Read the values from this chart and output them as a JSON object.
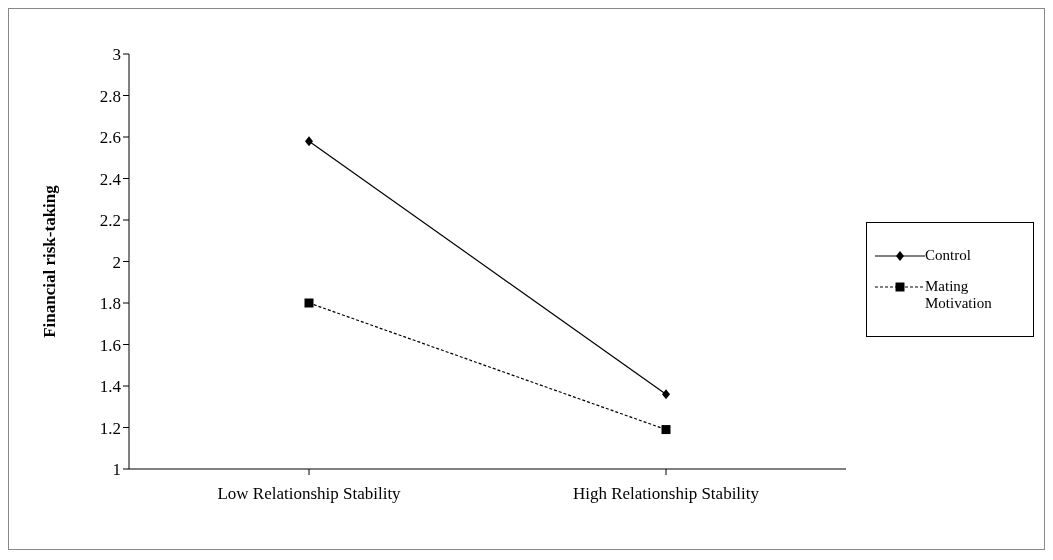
{
  "chart_data": {
    "type": "line",
    "ylabel": "Financial risk-taking",
    "categories": [
      "Low Relationship Stability",
      "High Relationship Stability"
    ],
    "series": [
      {
        "name": "Control",
        "color": "#000000",
        "values": [
          2.58,
          1.36
        ],
        "marker": "diamond",
        "line_style": "solid"
      },
      {
        "name": "Mating Motivation",
        "color": "#000000",
        "values": [
          1.8,
          1.19
        ],
        "marker": "square",
        "line_style": "dashed"
      }
    ],
    "ylim": [
      1,
      3
    ],
    "yticks": [
      1,
      1.2,
      1.4,
      1.6,
      1.8,
      2,
      2.2,
      2.4,
      2.6,
      2.8,
      3
    ],
    "grid": false,
    "legend": "right"
  }
}
